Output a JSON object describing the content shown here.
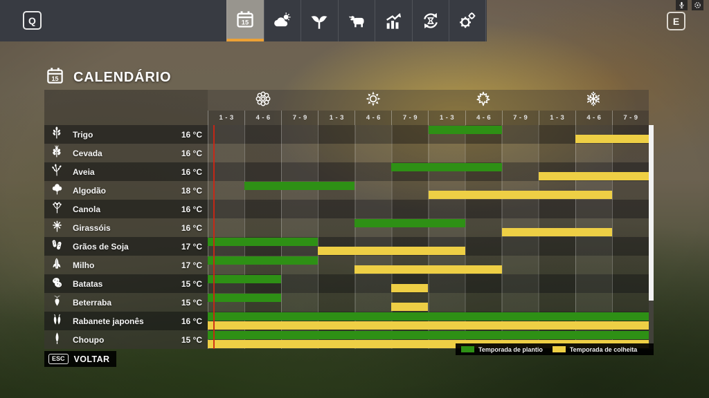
{
  "topbar": {
    "key_left": "Q",
    "key_right": "E",
    "tabs": [
      {
        "icon": "calendar-icon",
        "selected": true
      },
      {
        "icon": "weather-icon",
        "selected": false
      },
      {
        "icon": "sprout-icon",
        "selected": false
      },
      {
        "icon": "animals-icon",
        "selected": false
      },
      {
        "icon": "finances-icon",
        "selected": false
      },
      {
        "icon": "production-icon",
        "selected": false
      },
      {
        "icon": "settings-icon",
        "selected": false
      }
    ],
    "status_icons": [
      "microphone-icon",
      "record-icon"
    ]
  },
  "page": {
    "title": "CALENDÁRIO",
    "title_icon": "calendar-icon"
  },
  "calendar": {
    "seasons": [
      {
        "name": "spring",
        "icon": "flower-icon"
      },
      {
        "name": "summer",
        "icon": "sun-icon"
      },
      {
        "name": "autumn",
        "icon": "maple-leaf-icon"
      },
      {
        "name": "winter",
        "icon": "snowflake-icon"
      }
    ],
    "period_labels": [
      "1 - 3",
      "4 - 6",
      "7 - 9"
    ],
    "columns_per_season": 3,
    "crops": [
      {
        "name": "Trigo",
        "temp": "16 °C",
        "icon": "wheat-icon",
        "plant": [
          7,
          8
        ],
        "harvest": [
          11,
          12
        ]
      },
      {
        "name": "Cevada",
        "temp": "16 °C",
        "icon": "barley-icon",
        "plant": null,
        "harvest": null
      },
      {
        "name": "Aveia",
        "temp": "16 °C",
        "icon": "oat-icon",
        "plant": [
          6,
          8
        ],
        "harvest": [
          10,
          12
        ]
      },
      {
        "name": "Algodão",
        "temp": "18 °C",
        "icon": "cotton-icon",
        "plant": [
          2,
          4
        ],
        "harvest": [
          7,
          11
        ]
      },
      {
        "name": "Canola",
        "temp": "16 °C",
        "icon": "canola-icon",
        "plant": null,
        "harvest": null
      },
      {
        "name": "Girassóis",
        "temp": "16 °C",
        "icon": "sunflower-icon",
        "plant": [
          5,
          7
        ],
        "harvest": [
          9,
          11
        ]
      },
      {
        "name": "Grãos de Soja",
        "temp": "17 °C",
        "icon": "soybean-icon",
        "plant": [
          1,
          3
        ],
        "harvest": [
          4,
          7
        ]
      },
      {
        "name": "Milho",
        "temp": "17 °C",
        "icon": "corn-icon",
        "plant": [
          1,
          3
        ],
        "harvest": [
          5,
          8
        ]
      },
      {
        "name": "Batatas",
        "temp": "15 °C",
        "icon": "potato-icon",
        "plant": [
          1,
          2
        ],
        "harvest": [
          6,
          6
        ]
      },
      {
        "name": "Beterraba",
        "temp": "15 °C",
        "icon": "beet-icon",
        "plant": [
          1,
          2
        ],
        "harvest": [
          6,
          6
        ]
      },
      {
        "name": "Rabanete japonês",
        "temp": "16 °C",
        "icon": "radish-icon",
        "plant": [
          1,
          12
        ],
        "harvest": [
          1,
          12
        ]
      },
      {
        "name": "Choupo",
        "temp": "15 °C",
        "icon": "poplar-icon",
        "plant": [
          1,
          12
        ],
        "harvest": [
          1,
          12
        ]
      }
    ],
    "colors": {
      "plant": "#2e9015",
      "harvest": "#eecf45",
      "current_day_line": "#cf2513",
      "tab_accent": "#eda135"
    },
    "legend": [
      {
        "label": "Temporada de plantio",
        "color_key": "plant"
      },
      {
        "label": "Temporada de colheita",
        "color_key": "harvest"
      }
    ]
  },
  "footer": {
    "key": "ESC",
    "label": "VOLTAR"
  }
}
